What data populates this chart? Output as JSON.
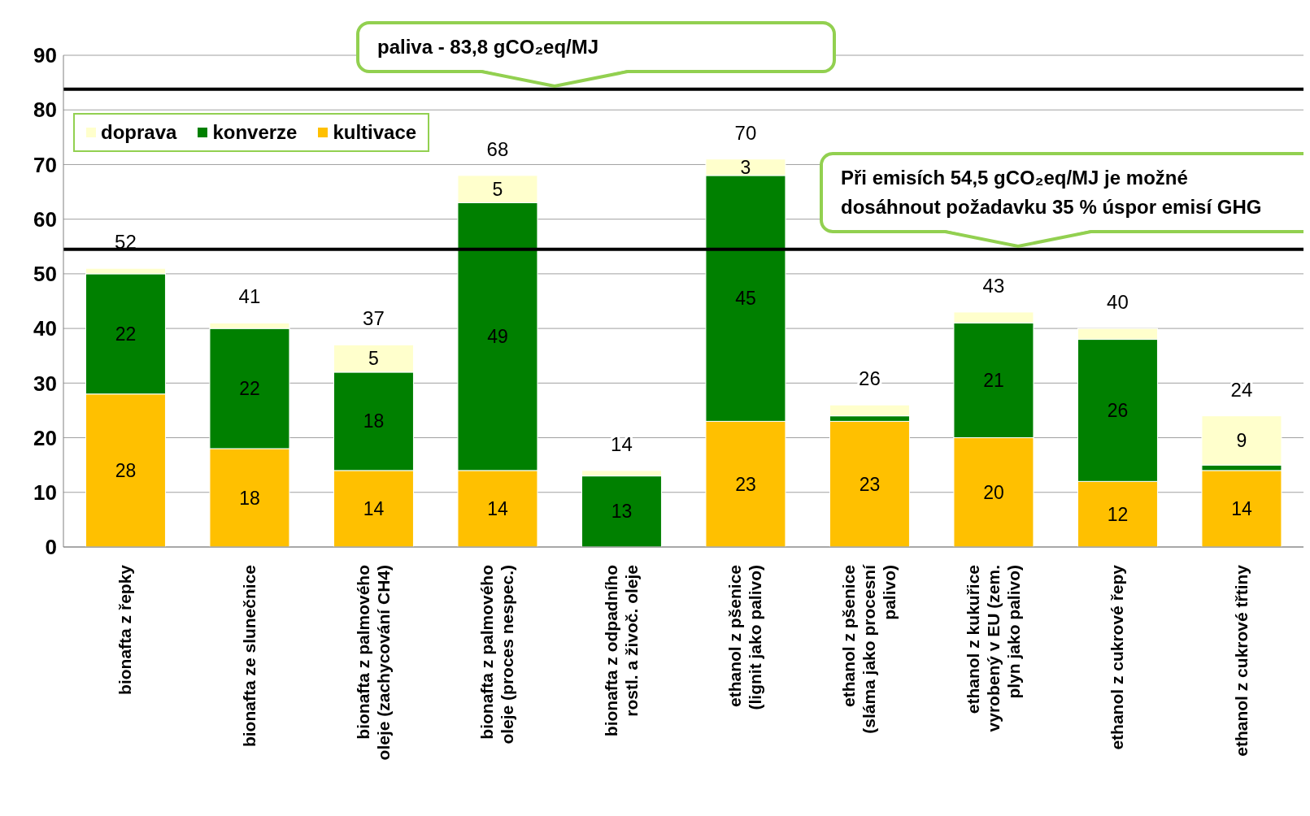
{
  "chart_data": {
    "type": "bar",
    "stacked": true,
    "categories": [
      "bionafta z řepky",
      "bionafta ze slunečnice",
      "bionafta z palmového oleje (zachycování CH4)",
      "bionafta z palmového oleje (proces nespec.)",
      "bionafta z odpadního rostl. a živoč. oleje",
      "ethanol z pšenice (lignit jako palivo)",
      "ethanol z pšenice (sláma jako procesní palivo)",
      "ethanol z kukuřice vyrobený v EU (zem. plyn jako palivo)",
      "ethanol z cukrové řepy",
      "ethanol z cukrové třtiny"
    ],
    "series": [
      {
        "name": "kultivace",
        "color": "#ffc000",
        "values": [
          28,
          18,
          14,
          14,
          0,
          23,
          23,
          20,
          12,
          14
        ],
        "value_labels": [
          "28",
          "18",
          "14",
          "14",
          null,
          "23",
          "23",
          "20",
          "12",
          "14"
        ]
      },
      {
        "name": "konverze",
        "color": "#008000",
        "values": [
          22,
          22,
          18,
          49,
          13,
          45,
          1,
          21,
          26,
          1
        ],
        "value_labels": [
          "22",
          "22",
          "18",
          "49",
          "13",
          "45",
          null,
          "21",
          "26",
          null
        ]
      },
      {
        "name": "doprava",
        "color": "#ffffcc",
        "values": [
          1,
          1,
          5,
          5,
          1,
          3,
          2,
          2,
          2,
          9
        ],
        "value_labels": [
          null,
          null,
          "5",
          "5",
          null,
          "3",
          null,
          null,
          null,
          "9"
        ]
      }
    ],
    "totals": [
      "52",
      "41",
      "37",
      "68",
      "14",
      "70",
      "26",
      "43",
      "40",
      "24"
    ],
    "ylim": [
      0,
      90
    ],
    "yticks": [
      0,
      10,
      20,
      30,
      40,
      50,
      60,
      70,
      80,
      90
    ],
    "grid": "y",
    "legend": "top left",
    "ref_lines": [
      {
        "axis": "y",
        "value": 83.8,
        "label": "paliva - 83,8 gCO₂eq/MJ",
        "color": "#000000"
      },
      {
        "axis": "y",
        "value": 54.5,
        "label": "Při emisích 54,5 gCO₂eq/MJ je možné dosáhnout požadavku 35 % úspor emisí GHG",
        "color": "#000000"
      }
    ]
  }
}
